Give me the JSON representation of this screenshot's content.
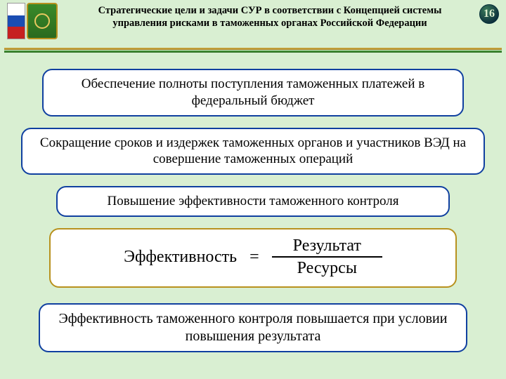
{
  "header": {
    "title_line1": "Стратегические цели и задачи СУР в соответствии с Концепцией системы",
    "title_line2": "управления рисками в таможенных органах Российской Федерации",
    "page_number": "16"
  },
  "boxes": {
    "goal1": "Обеспечение полноты поступления таможенных платежей в федеральный бюджет",
    "goal2": "Сокращение сроков и издержек таможенных органов и участников ВЭД на совершение таможенных операций",
    "goal3": "Повышение эффективности таможенного контроля",
    "conclusion": "Эффективность таможенного контроля повышается при условии повышения результата"
  },
  "formula": {
    "lhs": "Эффективность",
    "eq": "=",
    "numerator": "Результат",
    "denominator": "Ресурсы"
  },
  "colors": {
    "page_bg": "#d9efd2",
    "box_border_blue": "#1040a0",
    "box_border_gold": "#b8911e",
    "rule_gold": "#d4b24a",
    "rule_green": "#4a9a3a"
  }
}
